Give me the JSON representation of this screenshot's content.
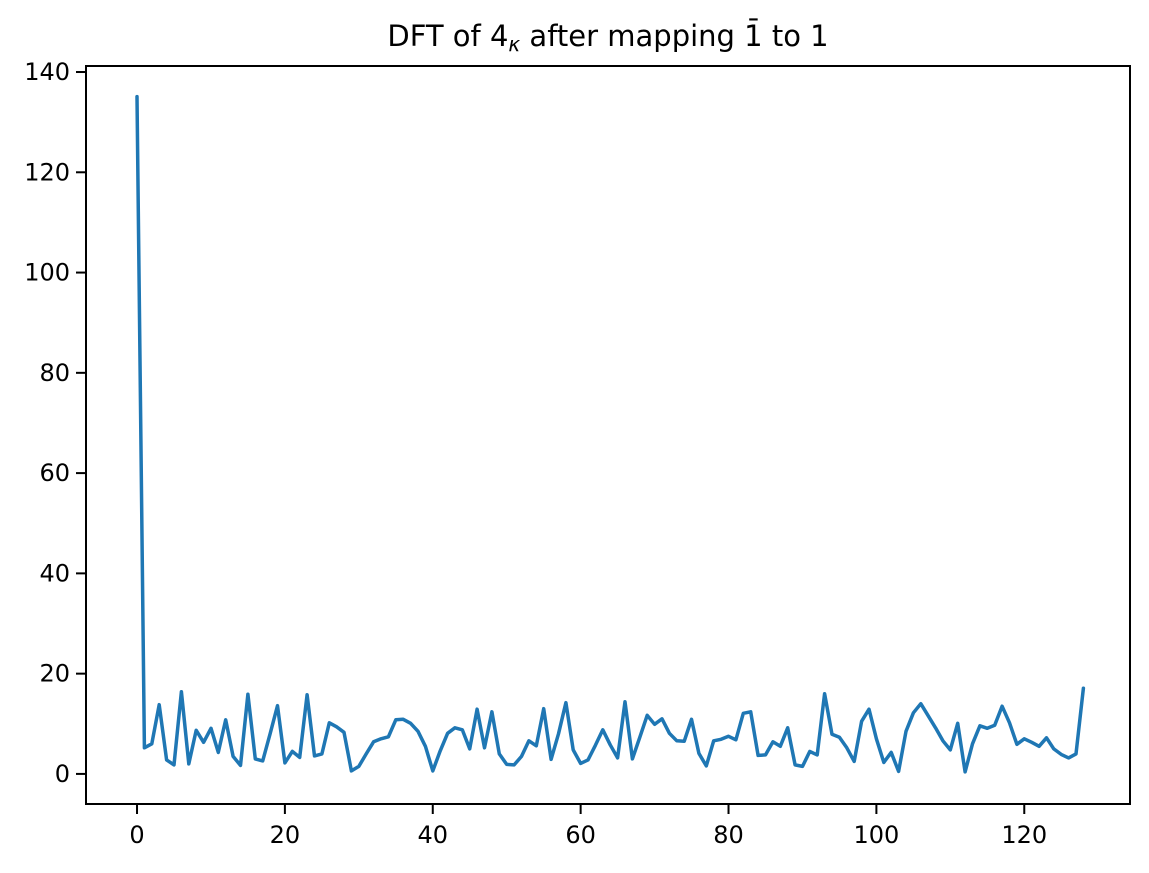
{
  "chart_data": {
    "type": "line",
    "title": "DFT of 4κ after mapping 1̄ to 1",
    "title_parts": {
      "part1": "DFT of 4",
      "kappa": "κ",
      "part2": " after mapping 1̄ to 1"
    },
    "xlabel": "",
    "ylabel": "",
    "x_start": 0,
    "x_step": 1,
    "values": [
      135.1,
      5.2,
      6.0,
      13.8,
      2.8,
      1.8,
      16.4,
      2.0,
      8.7,
      6.3,
      9.1,
      4.3,
      10.8,
      3.5,
      1.7,
      15.9,
      3.0,
      2.6,
      8.0,
      13.6,
      2.2,
      4.5,
      3.3,
      15.8,
      3.6,
      4.0,
      10.2,
      9.4,
      8.3,
      0.6,
      1.5,
      4.0,
      6.4,
      7.0,
      7.4,
      10.8,
      10.9,
      10.1,
      8.5,
      5.5,
      0.6,
      4.6,
      8.1,
      9.2,
      8.8,
      5.0,
      12.9,
      5.2,
      12.4,
      4.0,
      1.9,
      1.8,
      3.5,
      6.6,
      5.6,
      13.0,
      2.9,
      8.0,
      14.2,
      4.8,
      2.1,
      2.8,
      5.7,
      8.8,
      5.8,
      3.2,
      14.4,
      3.0,
      7.3,
      11.7,
      9.9,
      11.0,
      8.1,
      6.6,
      6.5,
      10.9,
      4.1,
      1.6,
      6.6,
      6.9,
      7.5,
      6.8,
      12.1,
      12.4,
      3.7,
      3.8,
      6.4,
      5.5,
      9.2,
      1.8,
      1.5,
      4.5,
      3.8,
      16.0,
      7.9,
      7.3,
      5.2,
      2.5,
      10.5,
      12.9,
      7.0,
      2.3,
      4.3,
      0.5,
      8.5,
      12.2,
      14.0,
      11.6,
      9.2,
      6.6,
      4.8,
      10.1,
      0.4,
      6.0,
      9.6,
      9.1,
      9.7,
      13.5,
      10.2,
      5.9,
      7.0,
      6.3,
      5.5,
      7.2,
      5.0,
      3.9,
      3.2,
      4.0,
      17.1
    ],
    "xticks": [
      0,
      20,
      40,
      60,
      80,
      100,
      120
    ],
    "yticks": [
      0,
      20,
      40,
      60,
      80,
      100,
      120,
      140
    ],
    "xlim": [
      -6.9,
      134.3
    ],
    "ylim": [
      -6.0,
      141.2
    ],
    "grid": false,
    "legend": null,
    "line_color": "#1f77b4",
    "axes_color": "#000000",
    "background": "#ffffff"
  }
}
